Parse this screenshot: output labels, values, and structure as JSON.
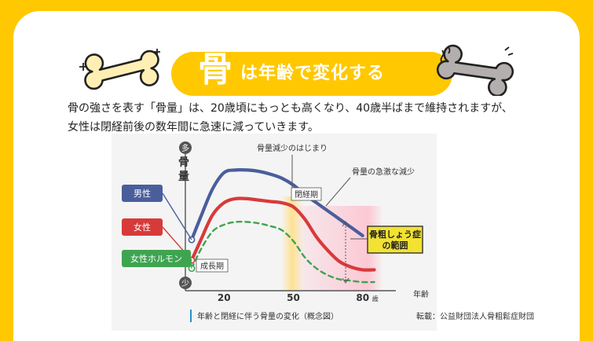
{
  "banner": {
    "char": "骨",
    "rest": "は年齢で変化する",
    "colors": {
      "accent": "#FFC800",
      "bone_left": "#FFEFB4",
      "bone_right": "#B3AFAE"
    }
  },
  "intro": {
    "line1": "骨の強さを表す「骨量」は、20歳頃にもっとも高くなり、40歳半ばまで維持されますが、",
    "line2": "女性は閉経前後の数年間に急速に減っていきます。"
  },
  "chart_data": {
    "type": "line",
    "title": "年齢と閉経に伴う骨量の変化（概念図）",
    "credit": "転載：公益財団法人骨粗鬆症財団",
    "ylabel": "骨量",
    "y_high": "多",
    "y_low": "少",
    "xlabel": "年齢",
    "x_unit": "歳",
    "x_ticks": [
      "20",
      "50",
      "80"
    ],
    "xlim": [
      6,
      93
    ],
    "ylim": [
      0,
      100
    ],
    "x": [
      6,
      10,
      15,
      20,
      25,
      30,
      35,
      40,
      45,
      50,
      55,
      60,
      65,
      70,
      75,
      80,
      85
    ],
    "series": [
      {
        "name": "男性",
        "color": "#4A5E9C",
        "values": [
          35,
          52,
          72,
          84,
          86,
          86,
          85,
          83,
          80,
          75,
          68,
          62,
          56,
          50,
          44,
          38,
          null
        ]
      },
      {
        "name": "女性",
        "color": "#D83A3A",
        "values": [
          20,
          35,
          53,
          62,
          65,
          65,
          64,
          63,
          62,
          59,
          50,
          37,
          27,
          19,
          15,
          13,
          13
        ]
      },
      {
        "name": "女性ホルモン",
        "color": "#3FA450",
        "dashed": true,
        "values": [
          14,
          28,
          41,
          46,
          48,
          48,
          47,
          45,
          42,
          34,
          22,
          14,
          9,
          6,
          5,
          4,
          4
        ]
      }
    ],
    "annotations": [
      {
        "text": "骨量減少のはじまり"
      },
      {
        "text": "骨量の急激な減少"
      },
      {
        "text": "閉経期"
      },
      {
        "text": "成長期"
      },
      {
        "text": "骨粗しょう症の範囲",
        "lines": [
          "骨粗しょう症",
          "の範囲"
        ]
      }
    ],
    "regions": [
      {
        "name": "閉経期",
        "x_from": 45,
        "x_to": 54,
        "color": "#FFE08A"
      },
      {
        "name": "骨粗しょう症の範囲",
        "x_from": 51,
        "x_to": 88,
        "color": "#FCC8D4"
      }
    ]
  }
}
